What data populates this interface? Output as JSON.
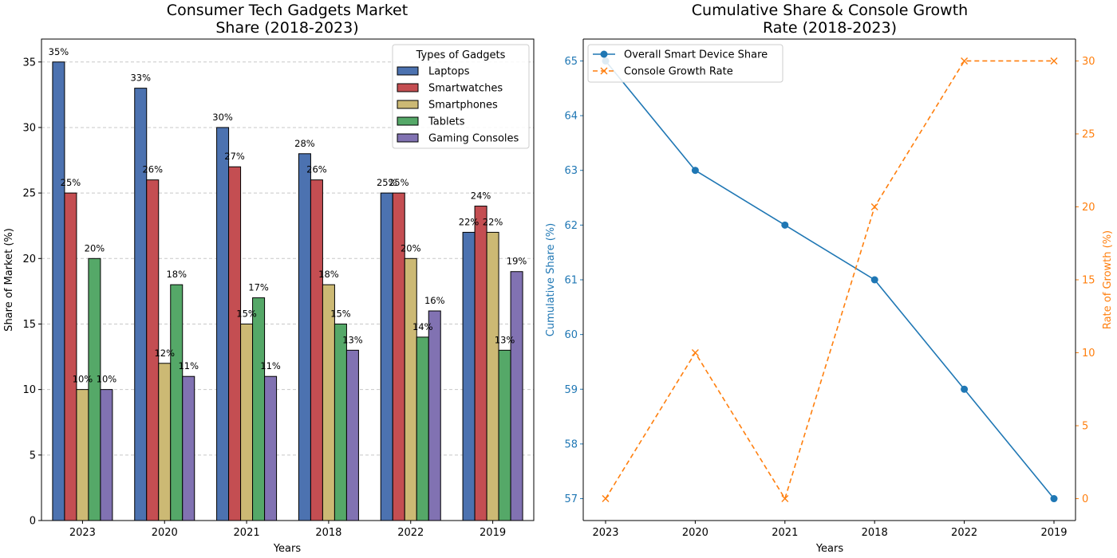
{
  "chart_data": [
    {
      "type": "bar",
      "title": "Consumer Tech Gadgets Market\nShare (2018-2023)",
      "xlabel": "Years",
      "ylabel": "Share of Market (%)",
      "ylim": [
        0,
        36.75
      ],
      "yticks": [
        0,
        5,
        10,
        15,
        20,
        25,
        30,
        35
      ],
      "grid": "y-dashed",
      "categories": [
        "2023",
        "2020",
        "2021",
        "2018",
        "2022",
        "2019"
      ],
      "legend": {
        "title": "Types of Gadgets",
        "placement": "top-right"
      },
      "series": [
        {
          "name": "Laptops",
          "color": "#4c72b0",
          "values": [
            35,
            33,
            30,
            28,
            25,
            22
          ]
        },
        {
          "name": "Smartwatches",
          "color": "#c44e52",
          "values": [
            25,
            26,
            27,
            26,
            25,
            24
          ]
        },
        {
          "name": "Smartphones",
          "color": "#ccb974",
          "values": [
            10,
            12,
            15,
            18,
            20,
            22
          ]
        },
        {
          "name": "Tablets",
          "color": "#55a868",
          "values": [
            20,
            18,
            17,
            15,
            14,
            13
          ]
        },
        {
          "name": "Gaming Consoles",
          "color": "#8172b2",
          "values": [
            10,
            11,
            11,
            13,
            16,
            19
          ]
        }
      ],
      "value_label_suffix": "%"
    },
    {
      "type": "line",
      "title": "Cumulative Share & Console Growth\nRate (2018-2023)",
      "xlabel": "Years",
      "categories": [
        "2023",
        "2020",
        "2021",
        "2018",
        "2022",
        "2019"
      ],
      "legend": {
        "placement": "top-left"
      },
      "left_axis": {
        "label": "Cumulative Share (%)",
        "color": "#1f77b4",
        "ylim": [
          56.6,
          65.4
        ],
        "yticks": [
          57,
          58,
          59,
          60,
          61,
          62,
          63,
          64,
          65
        ]
      },
      "right_axis": {
        "label": "Rate of Growth (%)",
        "color": "#ff7f0e",
        "ylim": [
          -1.5,
          31.5
        ],
        "yticks": [
          0,
          5,
          10,
          15,
          20,
          25,
          30
        ]
      },
      "series": [
        {
          "name": "Overall Smart Device Share",
          "axis": "left",
          "color": "#1f77b4",
          "marker": "circle",
          "line": "solid",
          "values": [
            65,
            63,
            62,
            61,
            59,
            57
          ]
        },
        {
          "name": "Console Growth Rate",
          "axis": "right",
          "color": "#ff7f0e",
          "marker": "x",
          "line": "dashed",
          "values": [
            0,
            10,
            0,
            20,
            30,
            30
          ]
        }
      ]
    }
  ]
}
